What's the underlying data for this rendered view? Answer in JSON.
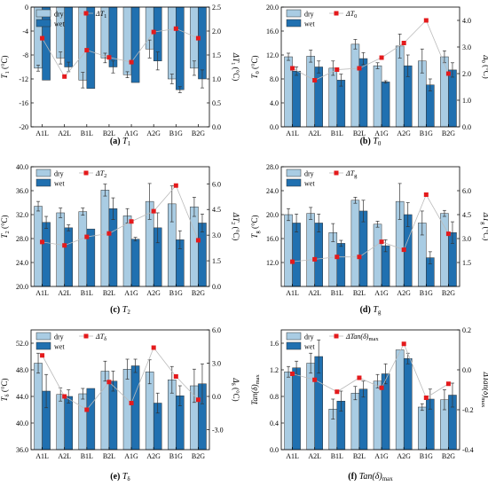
{
  "colors": {
    "dry": "#a9cce3",
    "wet": "#2070b0",
    "delta": "#e41a1c",
    "line": "#bbbbbb",
    "err": "#333333"
  },
  "chart_data": [
    {
      "id": "a",
      "type": "bar+line",
      "caption_letter": "(a)",
      "caption_symbol": "T",
      "caption_sub": "1",
      "ylabel_main": "T",
      "ylabel_sub": "1",
      "ylabel_unit": "(°C)",
      "ylabel_right": "ΔT",
      "ylabel_right_sub": "1",
      "ylabel_right_unit": "(°C)",
      "legend_delta": "ΔT",
      "legend_delta_sub": "1",
      "categories": [
        "A1L",
        "A2L",
        "B1L",
        "B2L",
        "A1G",
        "A2G",
        "B1G",
        "B2G"
      ],
      "ylim": [
        -20,
        0
      ],
      "yticks": [
        -20,
        -16,
        -12,
        -8,
        -4,
        0
      ],
      "yticklabels": [
        "-20",
        "-16",
        "-12",
        "-8",
        "-4",
        "0"
      ],
      "y2lim": [
        0,
        2.5
      ],
      "y2ticks": [
        0,
        0.5,
        1,
        1.5,
        2,
        2.5
      ],
      "y2ticklabels": [
        "0.0",
        "0.5",
        "1.0",
        "1.5",
        "2.0",
        "2.5"
      ],
      "series": [
        {
          "name": "dry",
          "values": [
            -10.2,
            -8.5,
            -12.2,
            -8.5,
            -11.3,
            -7.0,
            -12.0,
            -10.2
          ],
          "errors": [
            0.5,
            1.0,
            1.3,
            0.8,
            0.5,
            1.5,
            0.8,
            1.2
          ]
        },
        {
          "name": "wet",
          "values": [
            -12.2,
            -10.0,
            -13.6,
            -10.0,
            -12.6,
            -9.0,
            -13.8,
            -12.0
          ],
          "errors": [
            0,
            0.8,
            0,
            1.0,
            0,
            1.5,
            0.5,
            1.5
          ]
        }
      ],
      "delta": [
        1.85,
        1.05,
        1.6,
        1.45,
        1.35,
        1.98,
        2.05,
        1.85
      ]
    },
    {
      "id": "b",
      "type": "bar+line",
      "caption_letter": "(b)",
      "caption_symbol": "T",
      "caption_sub": "0",
      "ylabel_main": "T",
      "ylabel_sub": "0",
      "ylabel_unit": "(°C)",
      "ylabel_right": "Δ",
      "ylabel_right_sub": "0",
      "ylabel_right_unit": "(°C)",
      "legend_delta": "ΔT",
      "legend_delta_sub": "0",
      "categories": [
        "A1L",
        "A2L",
        "B1L",
        "B2L",
        "A1G",
        "A2G",
        "B1G",
        "B2G"
      ],
      "ylim": [
        0,
        20
      ],
      "yticks": [
        0,
        4,
        8,
        12,
        16,
        20
      ],
      "yticklabels": [
        "0.0",
        "4.0",
        "8.0",
        "12.0",
        "16.0",
        "20.0"
      ],
      "y2lim": [
        0,
        4.5
      ],
      "y2ticks": [
        0,
        1,
        2,
        3,
        4
      ],
      "y2ticklabels": [
        "0.0",
        "1.0",
        "2.0",
        "3.0",
        "4.0"
      ],
      "series": [
        {
          "name": "dry",
          "values": [
            11.7,
            11.8,
            9.8,
            13.8,
            10.2,
            13.5,
            11.0,
            11.7
          ],
          "errors": [
            0.6,
            1.0,
            1.2,
            0.8,
            0.5,
            2.0,
            2.0,
            1.0
          ]
        },
        {
          "name": "wet",
          "values": [
            9.3,
            10.0,
            7.8,
            11.4,
            7.5,
            10.2,
            7.0,
            9.5
          ],
          "errors": [
            0.7,
            1.0,
            1.0,
            1.0,
            0.2,
            1.8,
            1.0,
            1.2
          ]
        }
      ],
      "delta": [
        2.2,
        1.75,
        2.15,
        2.2,
        2.6,
        3.15,
        4.0,
        2.0
      ]
    },
    {
      "id": "c",
      "type": "bar+line",
      "caption_letter": "(c)",
      "caption_symbol": "T",
      "caption_sub": "2",
      "ylabel_main": "T",
      "ylabel_sub": "2",
      "ylabel_unit": "(°C)",
      "ylabel_right": "ΔT",
      "ylabel_right_sub": "2",
      "ylabel_right_unit": "(°C)",
      "legend_delta": "ΔT",
      "legend_delta_sub": "2",
      "categories": [
        "A1L",
        "A2L",
        "B1L",
        "B2L",
        "A1G",
        "A2G",
        "B1G",
        "B2G"
      ],
      "ylim": [
        20,
        40
      ],
      "yticks": [
        20,
        24,
        28,
        32,
        36,
        40
      ],
      "yticklabels": [
        "20.0",
        "24.0",
        "28.0",
        "32.0",
        "36.0",
        "40.0"
      ],
      "y2lim": [
        0,
        7.0
      ],
      "y2ticks": [
        0,
        1.5,
        3,
        4.5,
        6
      ],
      "y2ticklabels": [
        "0.0",
        "1.5",
        "3.0",
        "4.5",
        "6.0"
      ],
      "series": [
        {
          "name": "dry",
          "values": [
            33.4,
            32.3,
            32.5,
            36.1,
            31.8,
            34.2,
            33.8,
            33.3
          ],
          "errors": [
            0.8,
            0.8,
            0.6,
            1.0,
            1.2,
            3.0,
            3.0,
            1.6
          ]
        },
        {
          "name": "wet",
          "values": [
            30.7,
            29.8,
            29.6,
            33.0,
            27.9,
            29.8,
            27.8,
            30.6
          ],
          "errors": [
            1.0,
            0.5,
            0,
            1.8,
            0.3,
            2.5,
            1.5,
            1.5
          ]
        }
      ],
      "delta": [
        2.6,
        2.4,
        2.9,
        3.1,
        3.8,
        4.4,
        5.9,
        2.7
      ]
    },
    {
      "id": "d",
      "type": "bar+line",
      "caption_letter": "(d)",
      "caption_symbol": "T",
      "caption_sub": "g",
      "ylabel_main": "T",
      "ylabel_sub": "g",
      "ylabel_unit": "(°C)",
      "ylabel_right": "ΔT",
      "ylabel_right_sub": "g",
      "ylabel_right_unit": "(°C)",
      "legend_delta": "ΔT",
      "legend_delta_sub": "g",
      "categories": [
        "A1L",
        "A2L",
        "B1L",
        "B2L",
        "A1G",
        "A2G",
        "B1G",
        "B2G"
      ],
      "ylim": [
        8,
        28
      ],
      "yticks": [
        12,
        16,
        20,
        24,
        28
      ],
      "yticklabels": [
        "12.0",
        "16.0",
        "20.0",
        "24.0",
        "28.0"
      ],
      "y2lim": [
        0,
        7.5
      ],
      "y2ticks": [
        1.5,
        3,
        4.5,
        6
      ],
      "y2ticklabels": [
        "1.5",
        "3.0",
        "4.5",
        "6.0"
      ],
      "series": [
        {
          "name": "dry",
          "values": [
            20.0,
            20.2,
            17.0,
            22.4,
            18.4,
            22.2,
            18.6,
            20.2
          ],
          "errors": [
            1.0,
            1.0,
            1.5,
            0.5,
            0.5,
            3.0,
            2.0,
            0.5
          ]
        },
        {
          "name": "wet",
          "values": [
            18.6,
            18.6,
            15.2,
            20.6,
            14.8,
            20.0,
            12.8,
            17.0
          ],
          "errors": [
            1.5,
            1.5,
            0.5,
            1.8,
            1.0,
            2.0,
            1.0,
            1.8
          ]
        }
      ],
      "delta": [
        1.55,
        1.7,
        1.85,
        1.85,
        2.8,
        2.3,
        5.75,
        3.3
      ]
    },
    {
      "id": "e",
      "type": "bar+line",
      "caption_letter": "(e)",
      "caption_symbol": "T",
      "caption_sub": "δ",
      "ylabel_main": "T",
      "ylabel_sub": "δ",
      "ylabel_unit": "(°C)",
      "ylabel_right": "Δ",
      "ylabel_right_sub": "δ",
      "ylabel_right_unit": "(°C)",
      "legend_delta": "ΔT",
      "legend_delta_sub": "δ",
      "categories": [
        "A1L",
        "A2L",
        "B1L",
        "B2L",
        "A1G",
        "A2G",
        "B1G",
        "B2G"
      ],
      "ylim": [
        36,
        54
      ],
      "yticks": [
        36,
        40,
        44,
        48,
        52
      ],
      "yticklabels": [
        "36.0",
        "40.0",
        "44.0",
        "48.0",
        "52.0"
      ],
      "y2lim": [
        -4.8,
        6
      ],
      "y2ticks": [
        -3,
        0,
        3,
        6
      ],
      "y2ticklabels": [
        "-3.0",
        "0.0",
        "3.0",
        "6.0"
      ],
      "series": [
        {
          "name": "dry",
          "values": [
            49.0,
            44.3,
            44.4,
            47.8,
            48.1,
            47.7,
            46.5,
            45.6
          ],
          "errors": [
            1.5,
            1.0,
            0.8,
            1.5,
            1.5,
            1.8,
            2.0,
            2.5
          ]
        },
        {
          "name": "wet",
          "values": [
            44.8,
            44.0,
            45.2,
            46.3,
            48.6,
            43.0,
            44.1,
            45.9
          ],
          "errors": [
            2.5,
            1.0,
            0,
            1.5,
            1.0,
            1.5,
            1.5,
            3.0
          ]
        }
      ],
      "delta": [
        3.7,
        0.0,
        -1.2,
        1.3,
        -0.6,
        4.4,
        1.8,
        -0.3
      ]
    },
    {
      "id": "f",
      "type": "bar+line",
      "caption_letter": "(f)",
      "caption_symbol": "Tan(δ)",
      "caption_sub": "max",
      "ylabel_main": "Tan(δ)",
      "ylabel_sub": "max",
      "ylabel_unit": "",
      "ylabel_right": "ΔTan(δ)",
      "ylabel_right_sub": "max",
      "ylabel_right_unit": "",
      "legend_delta": "ΔTan(δ)",
      "legend_delta_sub": "max",
      "categories": [
        "A1L",
        "A2L",
        "B1L",
        "B2L",
        "A1G",
        "A2G",
        "B1G",
        "B2G"
      ],
      "ylim": [
        0,
        1.8
      ],
      "yticks": [
        0,
        0.4,
        0.8,
        1.2,
        1.6
      ],
      "yticklabels": [
        "0.0",
        "0.4",
        "0.8",
        "1.2",
        "1.6"
      ],
      "y2lim": [
        -0.4,
        0.2
      ],
      "y2ticks": [
        -0.4,
        -0.2,
        0,
        0.2
      ],
      "y2ticklabels": [
        "-0.4",
        "-0.2",
        "0.0",
        "0.2"
      ],
      "series": [
        {
          "name": "dry",
          "values": [
            1.17,
            1.3,
            0.61,
            0.85,
            1.03,
            1.5,
            0.64,
            0.75
          ],
          "errors": [
            0.08,
            0.15,
            0.15,
            0.1,
            0.1,
            0,
            0.05,
            0.15
          ]
        },
        {
          "name": "wet",
          "values": [
            1.23,
            1.4,
            0.73,
            0.91,
            1.14,
            1.37,
            0.76,
            0.82
          ],
          "errors": [
            0.1,
            0.25,
            0.15,
            0.12,
            0.15,
            0.08,
            0.15,
            0.18
          ]
        }
      ],
      "delta": [
        -0.02,
        -0.05,
        -0.11,
        -0.04,
        -0.09,
        0.13,
        -0.14,
        -0.07
      ]
    }
  ]
}
